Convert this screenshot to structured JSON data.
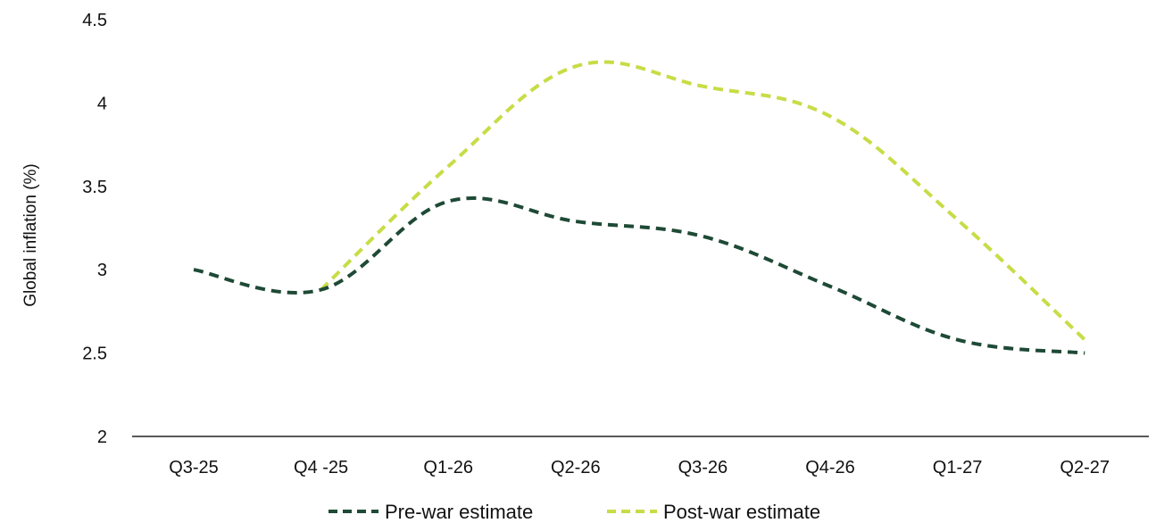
{
  "chart_data": {
    "type": "line",
    "categories": [
      "Q3-25",
      "Q4 -25",
      "Q1-26",
      "Q2-26",
      "Q3-26",
      "Q4-26",
      "Q1-27",
      "Q2-27"
    ],
    "ylabel": "Global inflation (%)",
    "xlabel": "",
    "ylim": [
      2,
      4.5
    ],
    "yticks": [
      "2",
      "2.5",
      "3",
      "3.5",
      "4",
      "4.5"
    ],
    "grid": false,
    "legend_position": "bottom-center",
    "series": [
      {
        "name": "Pre-war estimate",
        "color": "#1e4a36",
        "style": "dashed",
        "values": [
          3.0,
          2.88,
          3.41,
          3.29,
          3.2,
          2.9,
          2.58,
          2.5
        ]
      },
      {
        "name": "Post-war estimate",
        "color": "#c8dc46",
        "style": "dashed",
        "values": [
          null,
          2.88,
          3.62,
          4.22,
          4.1,
          3.92,
          3.3,
          2.58
        ]
      }
    ]
  }
}
